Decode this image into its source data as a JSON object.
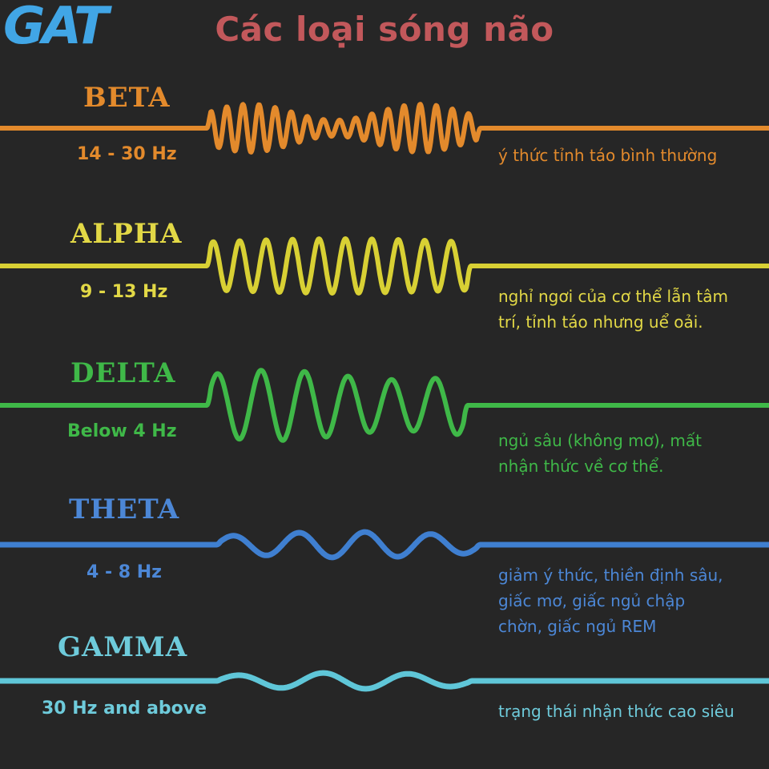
{
  "logo": {
    "text": "GAT",
    "color": "#41a6e6"
  },
  "title": "Các loại sóng não",
  "waves": [
    {
      "name": "BETA",
      "frequency": "14 - 30 Hz",
      "description": [
        "ý thức tỉnh táo bình thường"
      ],
      "color": "#e38a2c",
      "text_color": "#e38a2c"
    },
    {
      "name": "ALPHA",
      "frequency": "9 - 13 Hz",
      "description": [
        "nghỉ ngơi của cơ thể lẫn tâm",
        "trí, tỉnh táo nhưng uể oải."
      ],
      "color": "#d8d034",
      "text_color": "#e2d846"
    },
    {
      "name": "DELTA",
      "frequency": "Below 4 Hz",
      "description": [
        "ngủ sâu (không mơ), mất",
        "nhận thức về cơ thể."
      ],
      "color": "#3fb848",
      "text_color": "#3fb848"
    },
    {
      "name": "THETA",
      "frequency": "4 - 8 Hz",
      "description": [
        "giảm ý thức, thiền định sâu,",
        "giấc mơ, giấc ngủ chập",
        "chờn, giấc ngủ REM"
      ],
      "color": "#3f7fd0",
      "text_color": "#4c87d6"
    },
    {
      "name": "GAMMA",
      "frequency": "30 Hz and above",
      "description": [
        "trạng thái nhận thức cao siêu"
      ],
      "color": "#5fc6d8",
      "text_color": "#6ecbdb"
    }
  ]
}
